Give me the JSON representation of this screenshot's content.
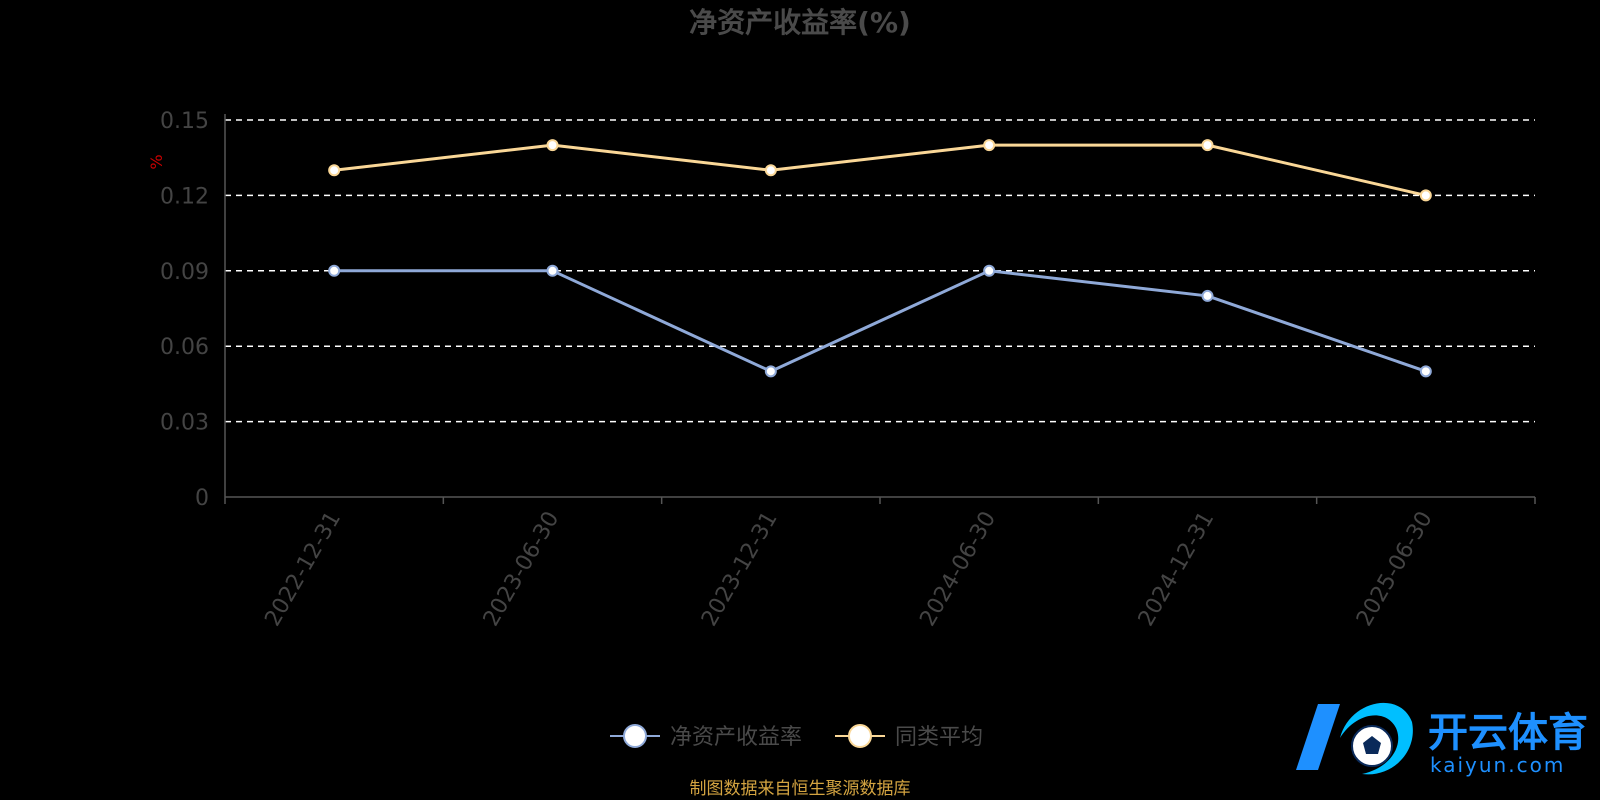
{
  "chart_data": {
    "type": "line",
    "title": "净资产收益率(%)",
    "unit_label": "%",
    "categories": [
      "2022-12-31",
      "2023-06-30",
      "2023-12-31",
      "2024-06-30",
      "2024-12-31",
      "2025-06-30"
    ],
    "series": [
      {
        "name": "净资产收益率",
        "color": "#8fa9d8",
        "values": [
          0.09,
          0.09,
          0.05,
          0.09,
          0.08,
          0.05
        ]
      },
      {
        "name": "同类平均",
        "color": "#fad797",
        "values": [
          0.13,
          0.14,
          0.13,
          0.14,
          0.14,
          0.12
        ]
      }
    ],
    "y_ticks": [
      "0",
      "0.03",
      "0.06",
      "0.09",
      "0.12",
      "0.15"
    ],
    "ylim": [
      0,
      0.15
    ],
    "grid": "dashed horizontal",
    "legend_position": "bottom-center"
  },
  "source_note": "制图数据来自恒生聚源数据库",
  "watermark": {
    "brand_text": "开云体育",
    "domain_text": "kaiyun.com",
    "logo_colors": [
      "#1e90ff",
      "#00bfff"
    ]
  }
}
